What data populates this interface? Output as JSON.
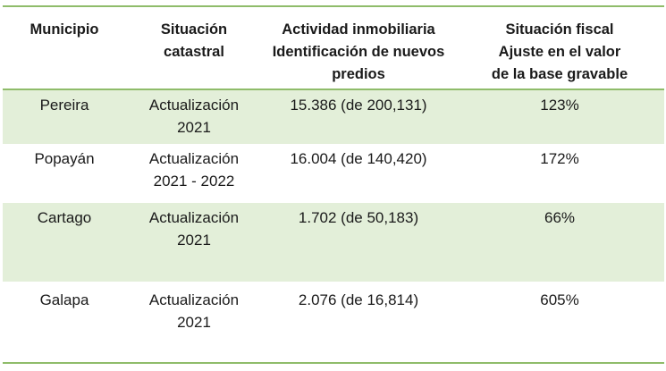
{
  "table": {
    "headers": [
      "Municipio",
      "Situación\ncatastral",
      "Actividad inmobiliaria\nIdentificación de nuevos\npredios",
      "Situación fiscal\nAjuste en el valor\nde la base gravable"
    ],
    "rows": [
      [
        "Pereira",
        "Actualización\n2021",
        "15.386 (de 200,131)",
        "123%"
      ],
      [
        "Popayán",
        "Actualización\n2021 - 2022",
        "16.004 (de 140,420)",
        "172%"
      ],
      [
        "Cartago",
        "Actualización\n2021",
        "1.702 (de 50,183)",
        "66%"
      ],
      [
        "Galapa",
        "Actualización\n2021",
        "2.076 (de 16,814)",
        "605%"
      ]
    ]
  },
  "colors": {
    "rule": "#8fbc6a",
    "row_shade": "#e3efd9"
  }
}
